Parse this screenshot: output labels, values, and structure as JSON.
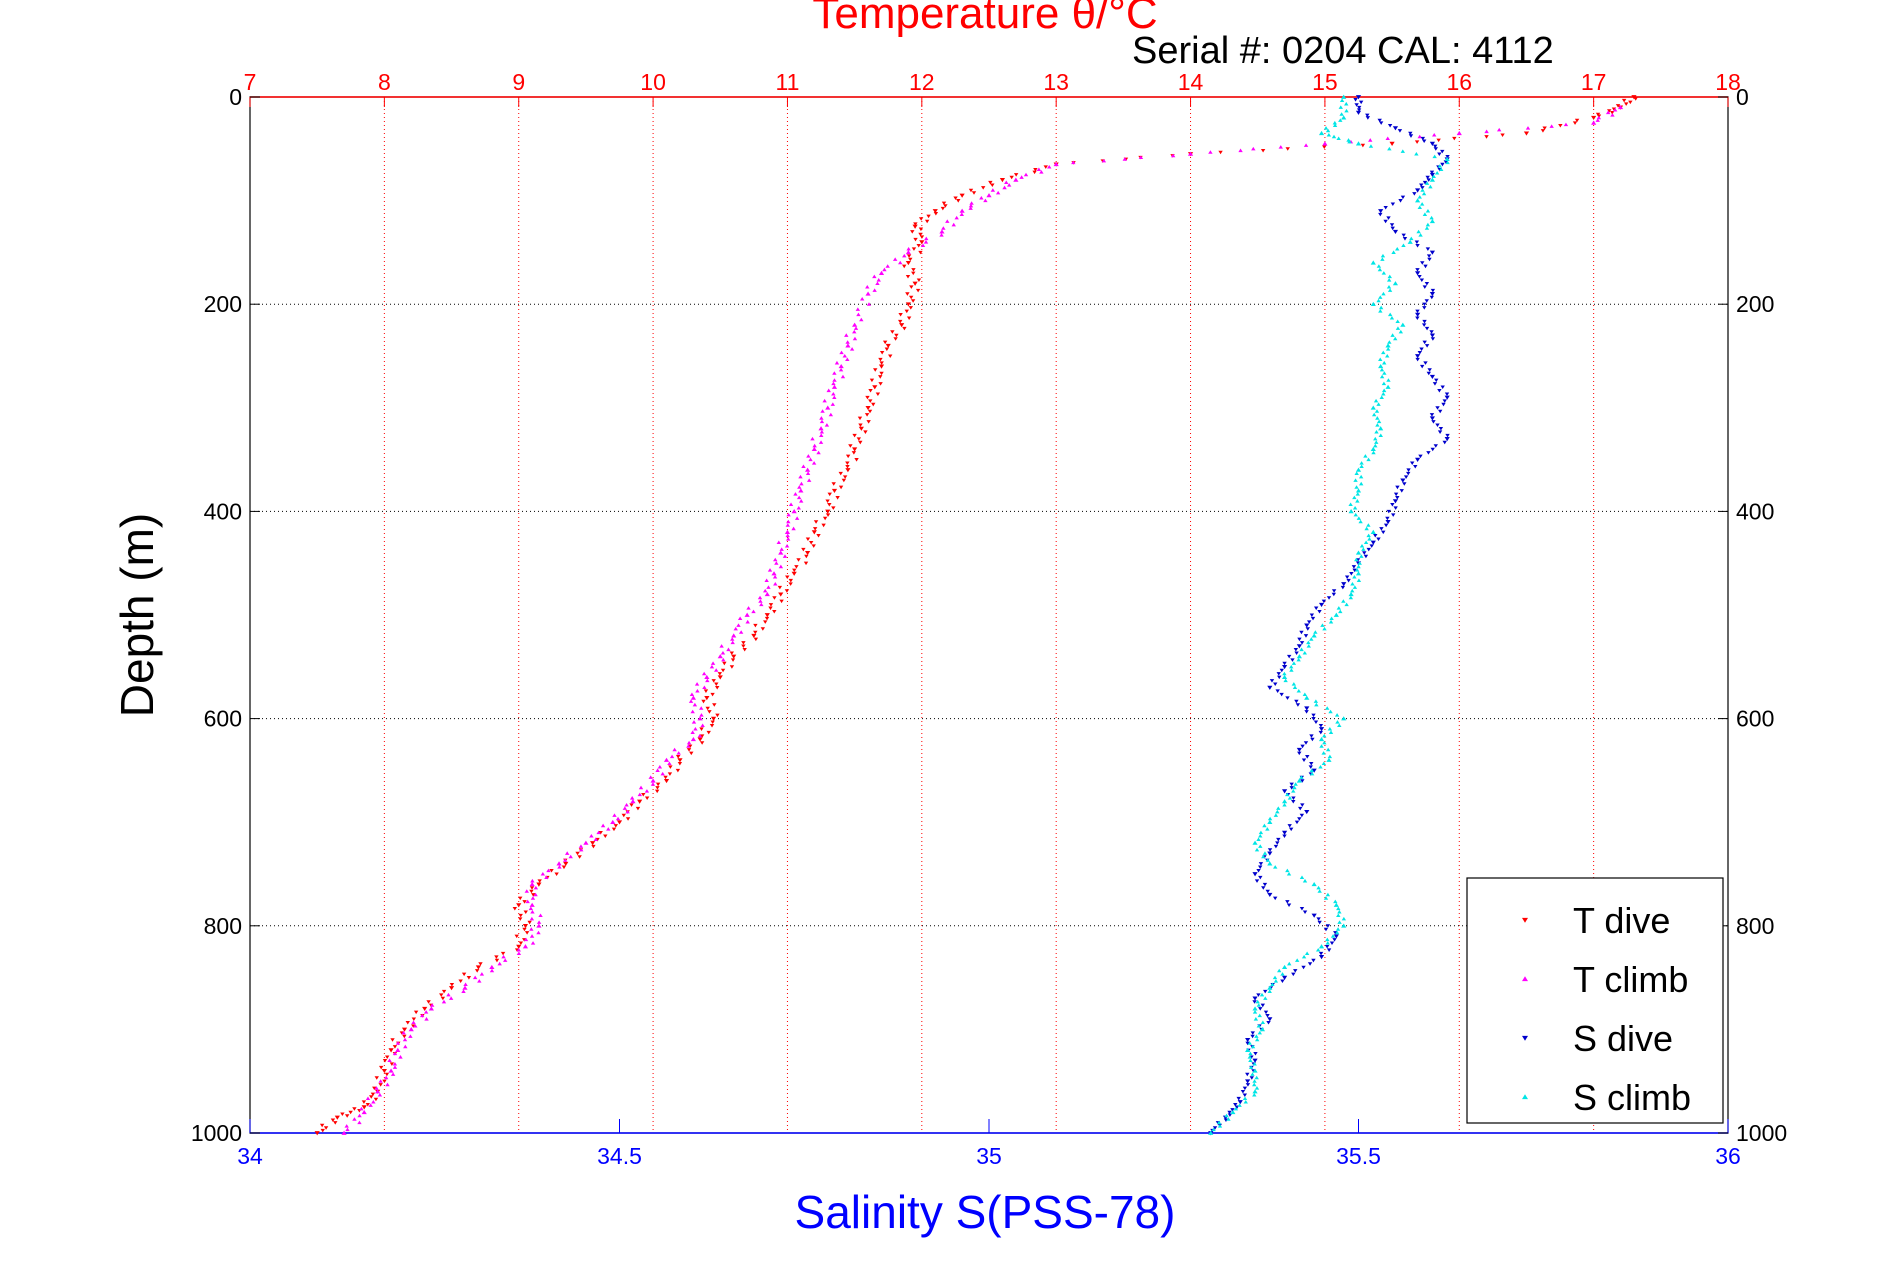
{
  "chart_data": {
    "type": "scatter",
    "title": "Temperature θ/°C",
    "subtitle": "Serial #: 0204  CAL: 4112",
    "xlabel": "Salinity S(PSS-78)",
    "ylabel": "Depth (m)",
    "x_top": {
      "label": "Temperature θ/°C",
      "range": [
        7,
        18
      ],
      "ticks": [
        "7",
        "8",
        "9",
        "10",
        "11",
        "12",
        "13",
        "14",
        "15",
        "16",
        "17",
        "18"
      ],
      "color": "#ff0000",
      "grid": true
    },
    "x_bottom": {
      "label": "Salinity S(PSS-78)",
      "range": [
        34,
        36
      ],
      "ticks": [
        "34",
        "34.5",
        "35",
        "35.5",
        "36"
      ],
      "color": "#0000ff"
    },
    "y": {
      "label": "Depth (m)",
      "range": [
        0,
        1000
      ],
      "reversed": true,
      "ticks": [
        "0",
        "200",
        "400",
        "600",
        "800",
        "1000"
      ],
      "grid": true
    },
    "legend_position": "bottom-right",
    "series": [
      {
        "name": "T dive",
        "axis": "temperature",
        "color": "#ff0000",
        "marker": "triangle-down",
        "points": [
          [
            17.3,
            0
          ],
          [
            17.2,
            10
          ],
          [
            17.0,
            20
          ],
          [
            16.5,
            35
          ],
          [
            15.5,
            45
          ],
          [
            14.0,
            55
          ],
          [
            13.0,
            65
          ],
          [
            12.6,
            80
          ],
          [
            12.3,
            95
          ],
          [
            12.1,
            110
          ],
          [
            11.95,
            125
          ],
          [
            12.0,
            140
          ],
          [
            11.9,
            160
          ],
          [
            11.95,
            180
          ],
          [
            11.9,
            200
          ],
          [
            11.85,
            220
          ],
          [
            11.75,
            240
          ],
          [
            11.7,
            260
          ],
          [
            11.65,
            280
          ],
          [
            11.6,
            300
          ],
          [
            11.55,
            320
          ],
          [
            11.5,
            340
          ],
          [
            11.45,
            360
          ],
          [
            11.35,
            380
          ],
          [
            11.3,
            400
          ],
          [
            11.2,
            420
          ],
          [
            11.15,
            440
          ],
          [
            11.05,
            460
          ],
          [
            10.95,
            480
          ],
          [
            10.85,
            500
          ],
          [
            10.75,
            520
          ],
          [
            10.6,
            540
          ],
          [
            10.5,
            560
          ],
          [
            10.4,
            580
          ],
          [
            10.45,
            600
          ],
          [
            10.35,
            620
          ],
          [
            10.2,
            640
          ],
          [
            10.1,
            660
          ],
          [
            9.9,
            680
          ],
          [
            9.75,
            700
          ],
          [
            9.55,
            720
          ],
          [
            9.35,
            740
          ],
          [
            9.15,
            760
          ],
          [
            9.0,
            780
          ],
          [
            9.05,
            800
          ],
          [
            9.0,
            820
          ],
          [
            8.7,
            840
          ],
          [
            8.5,
            860
          ],
          [
            8.3,
            880
          ],
          [
            8.15,
            900
          ],
          [
            8.05,
            920
          ],
          [
            8.0,
            940
          ],
          [
            7.95,
            960
          ],
          [
            7.85,
            975
          ],
          [
            7.65,
            985
          ],
          [
            7.5,
            1000
          ]
        ]
      },
      {
        "name": "T climb",
        "axis": "temperature",
        "color": "#ff00ff",
        "marker": "triangle-up",
        "points": [
          [
            17.2,
            10
          ],
          [
            17.0,
            25
          ],
          [
            16.0,
            35
          ],
          [
            15.0,
            45
          ],
          [
            14.0,
            55
          ],
          [
            13.0,
            65
          ],
          [
            12.7,
            80
          ],
          [
            12.5,
            95
          ],
          [
            12.3,
            110
          ],
          [
            12.15,
            130
          ],
          [
            11.9,
            150
          ],
          [
            11.7,
            170
          ],
          [
            11.6,
            190
          ],
          [
            11.5,
            220
          ],
          [
            11.45,
            240
          ],
          [
            11.4,
            260
          ],
          [
            11.35,
            280
          ],
          [
            11.3,
            300
          ],
          [
            11.25,
            320
          ],
          [
            11.2,
            340
          ],
          [
            11.15,
            360
          ],
          [
            11.1,
            380
          ],
          [
            11.05,
            400
          ],
          [
            11.0,
            420
          ],
          [
            10.95,
            440
          ],
          [
            10.9,
            460
          ],
          [
            10.85,
            480
          ],
          [
            10.7,
            500
          ],
          [
            10.6,
            520
          ],
          [
            10.5,
            540
          ],
          [
            10.4,
            560
          ],
          [
            10.3,
            580
          ],
          [
            10.35,
            600
          ],
          [
            10.3,
            620
          ],
          [
            10.1,
            640
          ],
          [
            10.0,
            660
          ],
          [
            9.85,
            680
          ],
          [
            9.7,
            700
          ],
          [
            9.5,
            720
          ],
          [
            9.3,
            740
          ],
          [
            9.1,
            760
          ],
          [
            9.1,
            780
          ],
          [
            9.15,
            800
          ],
          [
            9.05,
            820
          ],
          [
            8.8,
            840
          ],
          [
            8.6,
            860
          ],
          [
            8.35,
            880
          ],
          [
            8.2,
            900
          ],
          [
            8.1,
            920
          ],
          [
            8.05,
            940
          ],
          [
            7.95,
            960
          ],
          [
            7.85,
            980
          ],
          [
            7.7,
            1000
          ]
        ]
      },
      {
        "name": "S dive",
        "axis": "salinity",
        "color": "#0000cc",
        "marker": "triangle-down",
        "points": [
          [
            35.5,
            0
          ],
          [
            35.5,
            15
          ],
          [
            35.55,
            30
          ],
          [
            35.6,
            45
          ],
          [
            35.62,
            60
          ],
          [
            35.6,
            75
          ],
          [
            35.58,
            90
          ],
          [
            35.53,
            110
          ],
          [
            35.55,
            130
          ],
          [
            35.6,
            150
          ],
          [
            35.58,
            170
          ],
          [
            35.6,
            190
          ],
          [
            35.58,
            210
          ],
          [
            35.6,
            230
          ],
          [
            35.58,
            250
          ],
          [
            35.6,
            270
          ],
          [
            35.62,
            290
          ],
          [
            35.6,
            310
          ],
          [
            35.62,
            330
          ],
          [
            35.58,
            350
          ],
          [
            35.56,
            370
          ],
          [
            35.55,
            390
          ],
          [
            35.54,
            410
          ],
          [
            35.52,
            430
          ],
          [
            35.5,
            450
          ],
          [
            35.48,
            470
          ],
          [
            35.45,
            490
          ],
          [
            35.43,
            510
          ],
          [
            35.42,
            530
          ],
          [
            35.4,
            550
          ],
          [
            35.38,
            570
          ],
          [
            35.43,
            590
          ],
          [
            35.45,
            610
          ],
          [
            35.42,
            630
          ],
          [
            35.44,
            650
          ],
          [
            35.4,
            670
          ],
          [
            35.43,
            690
          ],
          [
            35.4,
            710
          ],
          [
            35.38,
            730
          ],
          [
            35.36,
            750
          ],
          [
            35.38,
            770
          ],
          [
            35.44,
            790
          ],
          [
            35.47,
            810
          ],
          [
            35.45,
            830
          ],
          [
            35.4,
            850
          ],
          [
            35.36,
            870
          ],
          [
            35.38,
            890
          ],
          [
            35.35,
            910
          ],
          [
            35.36,
            930
          ],
          [
            35.35,
            950
          ],
          [
            35.34,
            970
          ],
          [
            35.32,
            985
          ],
          [
            35.3,
            1000
          ]
        ]
      },
      {
        "name": "S climb",
        "axis": "salinity",
        "color": "#00e5e5",
        "marker": "triangle-up",
        "points": [
          [
            35.48,
            0
          ],
          [
            35.48,
            20
          ],
          [
            35.45,
            35
          ],
          [
            35.5,
            45
          ],
          [
            35.62,
            60
          ],
          [
            35.6,
            80
          ],
          [
            35.58,
            100
          ],
          [
            35.6,
            120
          ],
          [
            35.57,
            140
          ],
          [
            35.52,
            160
          ],
          [
            35.55,
            180
          ],
          [
            35.52,
            200
          ],
          [
            35.56,
            220
          ],
          [
            35.54,
            240
          ],
          [
            35.53,
            260
          ],
          [
            35.54,
            280
          ],
          [
            35.52,
            300
          ],
          [
            35.53,
            320
          ],
          [
            35.52,
            340
          ],
          [
            35.5,
            360
          ],
          [
            35.5,
            380
          ],
          [
            35.49,
            400
          ],
          [
            35.52,
            420
          ],
          [
            35.5,
            440
          ],
          [
            35.5,
            460
          ],
          [
            35.49,
            480
          ],
          [
            35.47,
            500
          ],
          [
            35.44,
            520
          ],
          [
            35.42,
            540
          ],
          [
            35.4,
            560
          ],
          [
            35.43,
            580
          ],
          [
            35.48,
            600
          ],
          [
            35.45,
            620
          ],
          [
            35.46,
            640
          ],
          [
            35.42,
            660
          ],
          [
            35.4,
            680
          ],
          [
            35.38,
            700
          ],
          [
            35.36,
            720
          ],
          [
            35.38,
            740
          ],
          [
            35.44,
            760
          ],
          [
            35.47,
            780
          ],
          [
            35.48,
            800
          ],
          [
            35.45,
            820
          ],
          [
            35.4,
            840
          ],
          [
            35.38,
            860
          ],
          [
            35.36,
            880
          ],
          [
            35.37,
            900
          ],
          [
            35.35,
            920
          ],
          [
            35.36,
            940
          ],
          [
            35.36,
            960
          ],
          [
            35.33,
            980
          ],
          [
            35.3,
            1000
          ]
        ]
      }
    ]
  }
}
